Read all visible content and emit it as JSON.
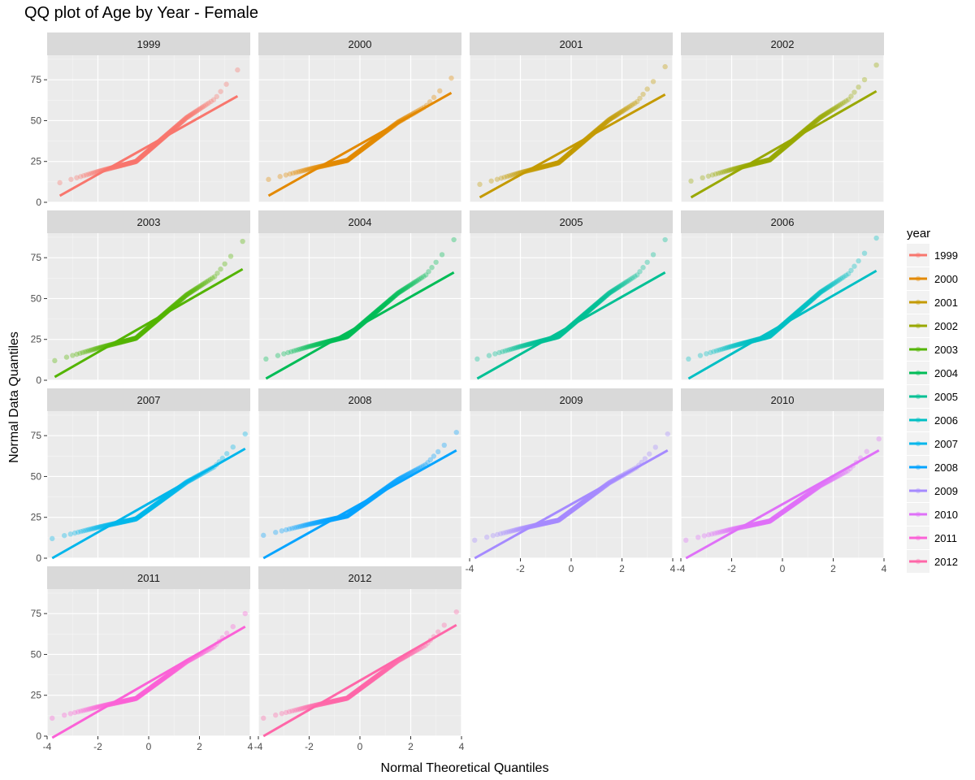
{
  "chart_data": {
    "type": "scatter",
    "title": "QQ plot of Age by Year - Female",
    "xlabel": "Normal Theoretical Quantiles",
    "ylabel": "Normal Data Quantiles",
    "xlim": [
      -4,
      4
    ],
    "ylim": [
      0,
      90
    ],
    "x_ticks": [
      -4,
      -2,
      0,
      2,
      4
    ],
    "y_ticks": [
      0,
      25,
      50,
      75
    ],
    "legend": {
      "title": "year",
      "position": "right"
    },
    "panels": [
      {
        "year": "1999",
        "color": "#F8766D",
        "x_min": -3.5,
        "x_max": 3.5,
        "data_min": 12,
        "data_max": 81,
        "line_start": 4,
        "line_end": 65
      },
      {
        "year": "2000",
        "color": "#E38900",
        "x_min": -3.6,
        "x_max": 3.6,
        "data_min": 14,
        "data_max": 76,
        "line_start": 4,
        "line_end": 67
      },
      {
        "year": "2001",
        "color": "#C49A00",
        "x_min": -3.6,
        "x_max": 3.7,
        "data_min": 11,
        "data_max": 83,
        "line_start": 3,
        "line_end": 66
      },
      {
        "year": "2002",
        "color": "#99A800",
        "x_min": -3.6,
        "x_max": 3.7,
        "data_min": 13,
        "data_max": 84,
        "line_start": 3,
        "line_end": 68
      },
      {
        "year": "2003",
        "color": "#53B400",
        "x_min": -3.7,
        "x_max": 3.7,
        "data_min": 12,
        "data_max": 85,
        "line_start": 2,
        "line_end": 68
      },
      {
        "year": "2004",
        "color": "#00BC56",
        "x_min": -3.7,
        "x_max": 3.7,
        "data_min": 13,
        "data_max": 86,
        "line_start": 1,
        "line_end": 66
      },
      {
        "year": "2005",
        "color": "#00C094",
        "x_min": -3.7,
        "x_max": 3.7,
        "data_min": 13,
        "data_max": 86,
        "line_start": 1,
        "line_end": 66
      },
      {
        "year": "2006",
        "color": "#00BFC4",
        "x_min": -3.7,
        "x_max": 3.7,
        "data_min": 13,
        "data_max": 87,
        "line_start": 1,
        "line_end": 67
      },
      {
        "year": "2007",
        "color": "#00B6EB",
        "x_min": -3.8,
        "x_max": 3.8,
        "data_min": 12,
        "data_max": 76,
        "line_start": 0,
        "line_end": 67
      },
      {
        "year": "2008",
        "color": "#06A4FF",
        "x_min": -3.8,
        "x_max": 3.8,
        "data_min": 14,
        "data_max": 77,
        "line_start": 0,
        "line_end": 66
      },
      {
        "year": "2009",
        "color": "#A58AFF",
        "x_min": -3.8,
        "x_max": 3.8,
        "data_min": 11,
        "data_max": 76,
        "line_start": 0,
        "line_end": 66
      },
      {
        "year": "2010",
        "color": "#DF70F8",
        "x_min": -3.8,
        "x_max": 3.8,
        "data_min": 11,
        "data_max": 73,
        "line_start": 0,
        "line_end": 66
      },
      {
        "year": "2011",
        "color": "#FB61D7",
        "x_min": -3.8,
        "x_max": 3.8,
        "data_min": 11,
        "data_max": 75,
        "line_start": -1,
        "line_end": 67
      },
      {
        "year": "2012",
        "color": "#FF66A8",
        "x_min": -3.8,
        "x_max": 3.8,
        "data_min": 11,
        "data_max": 76,
        "line_start": 0,
        "line_end": 68
      }
    ]
  }
}
